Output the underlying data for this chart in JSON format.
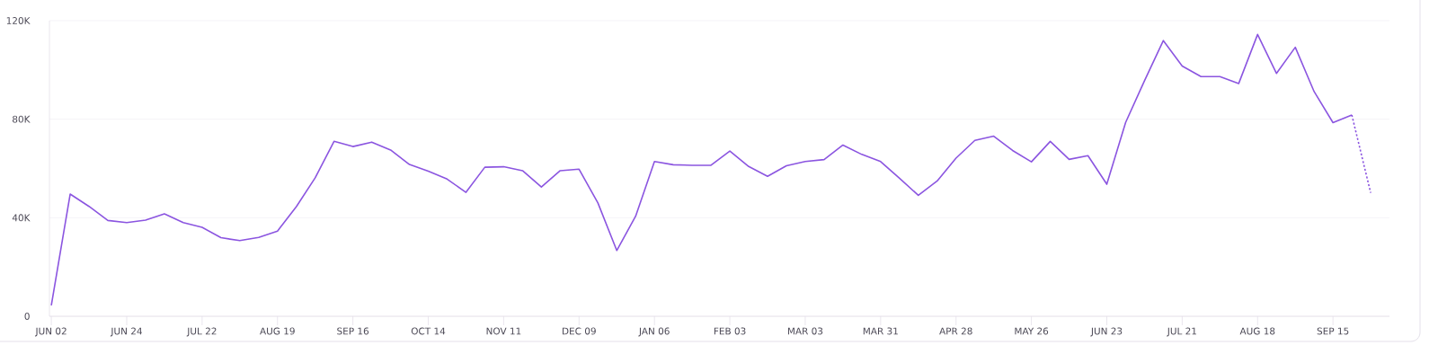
{
  "chart_data": {
    "type": "line",
    "categories": [
      "JUN 02",
      null,
      null,
      null,
      "JUN 24",
      null,
      null,
      null,
      "JUL 22",
      null,
      null,
      null,
      "AUG 19",
      null,
      null,
      null,
      "SEP 16",
      null,
      null,
      null,
      "OCT 14",
      null,
      null,
      null,
      "NOV 11",
      null,
      null,
      null,
      "DEC 09",
      null,
      null,
      null,
      "JAN 06",
      null,
      null,
      null,
      "FEB 03",
      null,
      null,
      null,
      "MAR 03",
      null,
      null,
      null,
      "MAR 31",
      null,
      null,
      null,
      "APR 28",
      null,
      null,
      null,
      "MAY 26",
      null,
      null,
      null,
      "JUN 23",
      null,
      null,
      null,
      "JUL 21",
      null,
      null,
      null,
      "AUG 18",
      null,
      null,
      null,
      "SEP 15",
      null,
      null
    ],
    "series": [
      {
        "color": "#8b55e0",
        "line_style": "solid",
        "values": [
          4400,
          49600,
          44600,
          38900,
          38000,
          39000,
          41600,
          38000,
          36100,
          31900,
          30700,
          32000,
          34600,
          44500,
          56200,
          71000,
          68900,
          70700,
          67500,
          61600,
          58900,
          55700,
          50300,
          60500,
          60700,
          59100,
          52500,
          59100,
          59700,
          46000,
          26700,
          40600,
          62800,
          61500,
          61300,
          61300,
          67100,
          60800,
          56800,
          61100,
          62800,
          63600,
          69500,
          65700,
          62800,
          56000,
          49100,
          54900,
          64200,
          71400,
          73100,
          67300,
          62700,
          71000,
          63700,
          65200,
          53600,
          78700,
          95600,
          111900,
          101600,
          97300,
          97300,
          94500,
          114400,
          98600,
          109200,
          91200,
          78600,
          81700,
          null
        ]
      },
      {
        "color": "#8b55e0",
        "line_style": "dotted",
        "values": [
          null,
          null,
          null,
          null,
          null,
          null,
          null,
          null,
          null,
          null,
          null,
          null,
          null,
          null,
          null,
          null,
          null,
          null,
          null,
          null,
          null,
          null,
          null,
          null,
          null,
          null,
          null,
          null,
          null,
          null,
          null,
          null,
          null,
          null,
          null,
          null,
          null,
          null,
          null,
          null,
          null,
          null,
          null,
          null,
          null,
          null,
          null,
          null,
          null,
          null,
          null,
          null,
          null,
          null,
          null,
          null,
          null,
          null,
          null,
          null,
          null,
          null,
          null,
          null,
          null,
          null,
          null,
          null,
          null,
          81700,
          50100
        ]
      }
    ],
    "ylim": [
      0,
      120000
    ],
    "yticks": [
      {
        "value": 0,
        "label": "0"
      },
      {
        "value": 40000,
        "label": "40K"
      },
      {
        "value": 80000,
        "label": "80K"
      },
      {
        "value": 120000,
        "label": "120K"
      }
    ],
    "grid": "y"
  }
}
